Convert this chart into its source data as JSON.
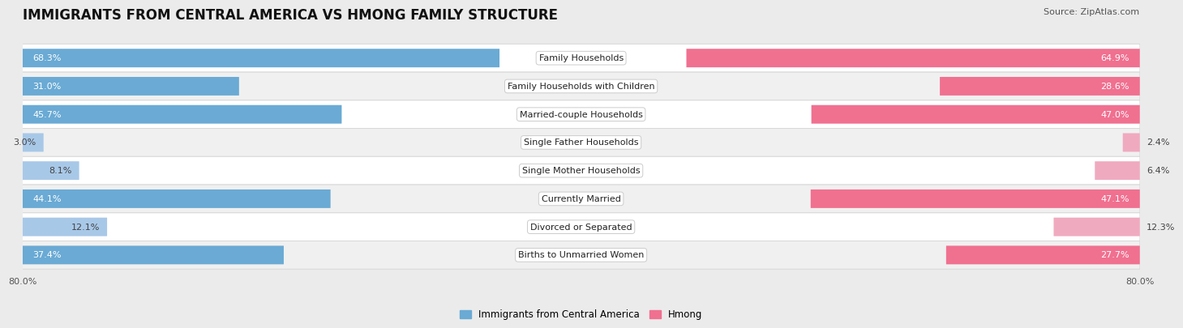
{
  "title": "IMMIGRANTS FROM CENTRAL AMERICA VS HMONG FAMILY STRUCTURE",
  "source": "Source: ZipAtlas.com",
  "categories": [
    "Family Households",
    "Family Households with Children",
    "Married-couple Households",
    "Single Father Households",
    "Single Mother Households",
    "Currently Married",
    "Divorced or Separated",
    "Births to Unmarried Women"
  ],
  "central_america_values": [
    68.3,
    31.0,
    45.7,
    3.0,
    8.1,
    44.1,
    12.1,
    37.4
  ],
  "hmong_values": [
    64.9,
    28.6,
    47.0,
    2.4,
    6.4,
    47.1,
    12.3,
    27.7
  ],
  "max_value": 80.0,
  "color_blue_dark": "#6aaad4",
  "color_blue_light": "#a8c8e8",
  "color_pink_dark": "#f07090",
  "color_pink_light": "#f0aac0",
  "color_bg": "#ebebeb",
  "color_row_white": "#ffffff",
  "color_row_gray": "#f0f0f0",
  "color_row_border": "#d8d8d8",
  "legend_blue": "Immigrants from Central America",
  "legend_pink": "Hmong",
  "axis_label_left": "80.0%",
  "axis_label_right": "80.0%",
  "title_fontsize": 12,
  "label_fontsize": 8,
  "value_fontsize": 8,
  "source_fontsize": 8,
  "dark_threshold": 20
}
